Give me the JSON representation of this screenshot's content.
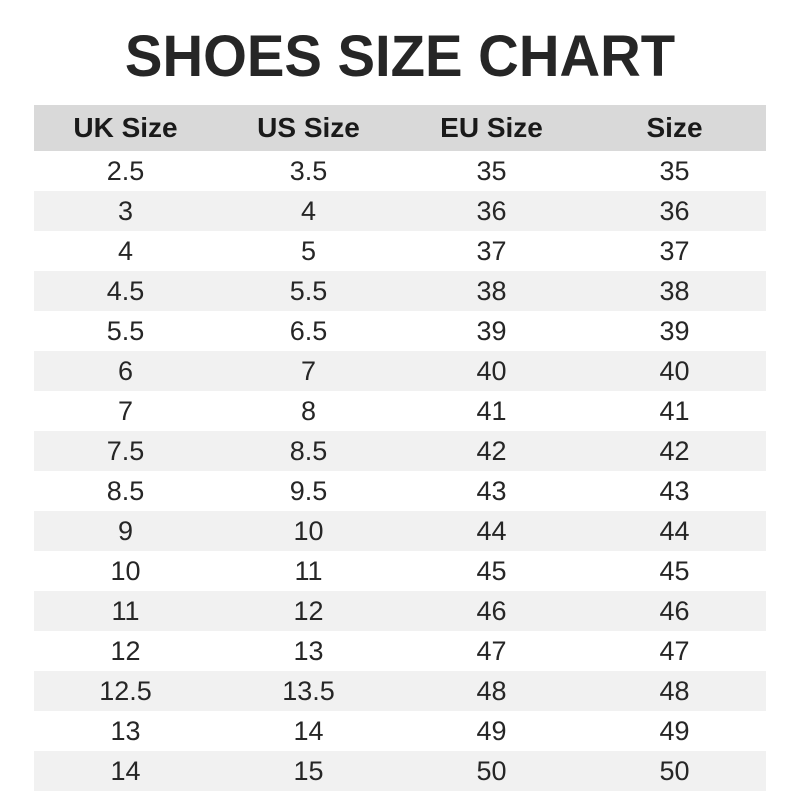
{
  "title": "SHOES SIZE CHART",
  "colors": {
    "title_text": "#262626",
    "header_bg": "#d9d9d9",
    "stripe_bg": "#f1f1f1",
    "row_bg": "#ffffff",
    "cell_text": "#262626",
    "page_bg": "#ffffff"
  },
  "chart_data": {
    "type": "table",
    "title": "SHOES SIZE CHART",
    "columns": [
      "UK Size",
      "US Size",
      "EU Size",
      "Size"
    ],
    "rows": [
      [
        "2.5",
        "3.5",
        "35",
        "35"
      ],
      [
        "3",
        "4",
        "36",
        "36"
      ],
      [
        "4",
        "5",
        "37",
        "37"
      ],
      [
        "4.5",
        "5.5",
        "38",
        "38"
      ],
      [
        "5.5",
        "6.5",
        "39",
        "39"
      ],
      [
        "6",
        "7",
        "40",
        "40"
      ],
      [
        "7",
        "8",
        "41",
        "41"
      ],
      [
        "7.5",
        "8.5",
        "42",
        "42"
      ],
      [
        "8.5",
        "9.5",
        "43",
        "43"
      ],
      [
        "9",
        "10",
        "44",
        "44"
      ],
      [
        "10",
        "11",
        "45",
        "45"
      ],
      [
        "11",
        "12",
        "46",
        "46"
      ],
      [
        "12",
        "13",
        "47",
        "47"
      ],
      [
        "12.5",
        "13.5",
        "48",
        "48"
      ],
      [
        "13",
        "14",
        "49",
        "49"
      ],
      [
        "14",
        "15",
        "50",
        "50"
      ]
    ],
    "layout": {
      "zebra_striping": true,
      "first_data_row_bg": "white",
      "header_style": "solid gray band, bold text",
      "alignment": "center"
    }
  }
}
